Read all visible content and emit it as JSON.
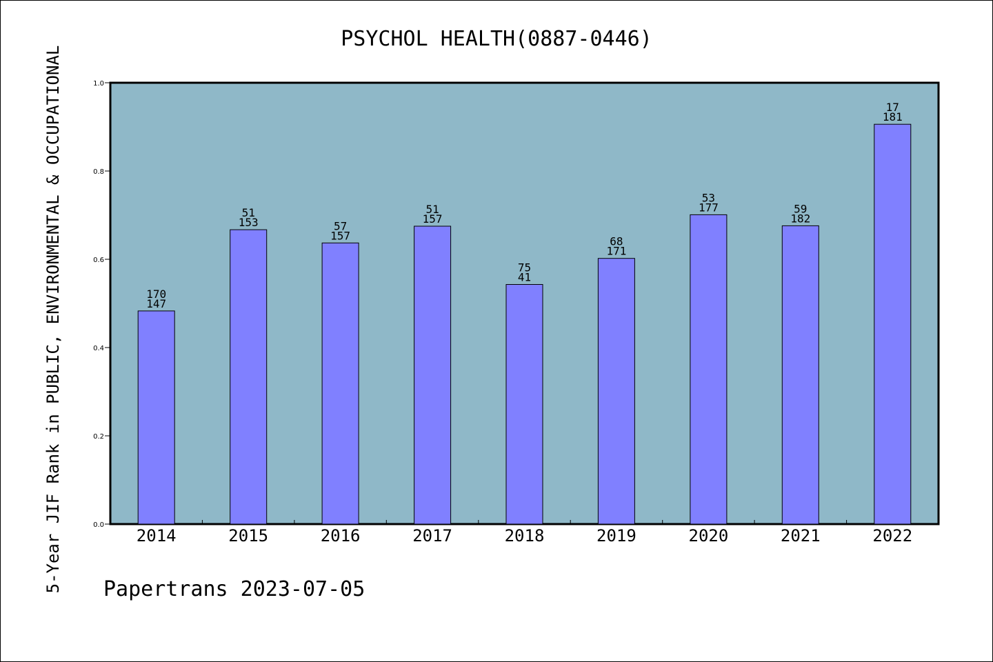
{
  "chart_data": {
    "type": "bar",
    "title": "PSYCHOL HEALTH(0887-0446)",
    "ylabel": "5-Year JIF Rank in PUBLIC, ENVIRONMENTAL & OCCUPATIONAL",
    "xlabel": "",
    "ylim": [
      0.0,
      1.0
    ],
    "yticks": [
      "0.0",
      "0.2",
      "0.4",
      "0.6",
      "0.8",
      "1.0"
    ],
    "categories": [
      "2014",
      "2015",
      "2016",
      "2017",
      "2018",
      "2019",
      "2020",
      "2021",
      "2022"
    ],
    "values": [
      0.483,
      0.667,
      0.637,
      0.675,
      0.543,
      0.602,
      0.701,
      0.676,
      0.906
    ],
    "labels_top": [
      "170",
      "51",
      "57",
      "51",
      "75",
      "68",
      "53",
      "59",
      "17"
    ],
    "labels_bottom": [
      "147",
      "153",
      "157",
      "157",
      "41",
      "171",
      "177",
      "182",
      "181"
    ],
    "colors": {
      "plot_background": "#8fb8c8",
      "bar_fill": "#8080ff",
      "bar_stroke": "#000000"
    },
    "grid": false
  },
  "footer": {
    "credit": "Papertrans 2023-07-05"
  }
}
